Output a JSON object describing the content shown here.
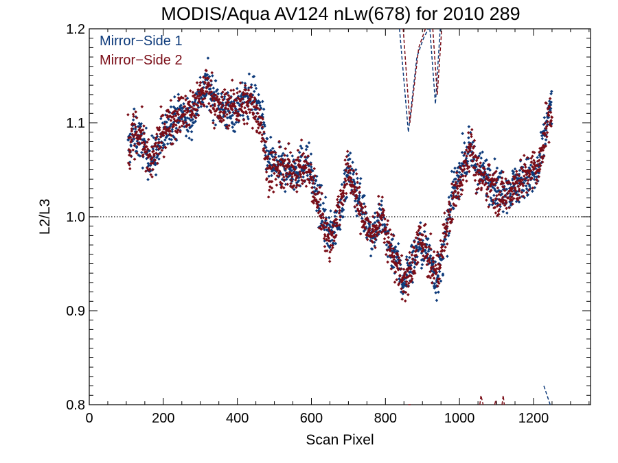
{
  "chart_data": {
    "type": "scatter",
    "title": "MODIS/Aqua AV124 nLw(678) for 2010 289",
    "xlabel": "Scan Pixel",
    "ylabel": "L2/L3",
    "xlim": [
      0,
      1354
    ],
    "ylim": [
      0.8,
      1.2
    ],
    "x_ticks": [
      0,
      200,
      400,
      600,
      800,
      1000,
      1200
    ],
    "x_tick_labels": [
      "0",
      "200",
      "400",
      "600",
      "800",
      "1000",
      "1200"
    ],
    "y_ticks": [
      0.8,
      0.9,
      1.0,
      1.1,
      1.2
    ],
    "y_tick_labels": [
      "0.8",
      "0.9",
      "1.0",
      "1.1",
      "1.2"
    ],
    "reference_line": 1.0,
    "legend_position": "top-left",
    "series": [
      {
        "name": "Mirror−Side 1",
        "color": "#0d3a7a",
        "trend": [
          [
            105,
            1.07
          ],
          [
            120,
            1.09
          ],
          [
            140,
            1.08
          ],
          [
            165,
            1.06
          ],
          [
            185,
            1.07
          ],
          [
            215,
            1.1
          ],
          [
            250,
            1.11
          ],
          [
            270,
            1.1
          ],
          [
            300,
            1.13
          ],
          [
            320,
            1.14
          ],
          [
            350,
            1.12
          ],
          [
            380,
            1.11
          ],
          [
            410,
            1.12
          ],
          [
            440,
            1.13
          ],
          [
            465,
            1.11
          ],
          [
            480,
            1.06
          ],
          [
            520,
            1.05
          ],
          [
            560,
            1.05
          ],
          [
            590,
            1.06
          ],
          [
            615,
            1.02
          ],
          [
            650,
            0.98
          ],
          [
            675,
            1.0
          ],
          [
            700,
            1.05
          ],
          [
            730,
            1.02
          ],
          [
            760,
            0.98
          ],
          [
            790,
            1.0
          ],
          [
            810,
            0.97
          ],
          [
            830,
            0.96
          ],
          [
            845,
            0.93
          ],
          [
            870,
            0.95
          ],
          [
            890,
            0.97
          ],
          [
            920,
            0.96
          ],
          [
            940,
            0.93
          ],
          [
            960,
            0.97
          ],
          [
            985,
            1.03
          ],
          [
            1010,
            1.06
          ],
          [
            1030,
            1.07
          ],
          [
            1050,
            1.05
          ],
          [
            1080,
            1.04
          ],
          [
            1110,
            1.03
          ],
          [
            1140,
            1.03
          ],
          [
            1170,
            1.04
          ],
          [
            1200,
            1.04
          ],
          [
            1215,
            1.05
          ],
          [
            1235,
            1.1
          ],
          [
            1250,
            1.12
          ]
        ],
        "dashed_segments": [
          [
            [
              838,
              1.2
            ],
            [
              862,
              1.09
            ],
            [
              885,
              1.17
            ],
            [
              903,
              1.19
            ],
            [
              916,
              1.2
            ]
          ],
          [
            [
              920,
              1.2
            ],
            [
              935,
              1.12
            ],
            [
              948,
              1.2
            ]
          ],
          [
            [
              1228,
              0.82
            ],
            [
              1245,
              0.8
            ]
          ]
        ]
      },
      {
        "name": "Mirror−Side 2",
        "color": "#7a0d17",
        "trend": [
          [
            105,
            1.06
          ],
          [
            120,
            1.09
          ],
          [
            140,
            1.09
          ],
          [
            165,
            1.05
          ],
          [
            185,
            1.08
          ],
          [
            215,
            1.1
          ],
          [
            250,
            1.11
          ],
          [
            270,
            1.11
          ],
          [
            300,
            1.13
          ],
          [
            320,
            1.14
          ],
          [
            350,
            1.11
          ],
          [
            380,
            1.12
          ],
          [
            410,
            1.12
          ],
          [
            440,
            1.12
          ],
          [
            465,
            1.1
          ],
          [
            480,
            1.05
          ],
          [
            520,
            1.05
          ],
          [
            560,
            1.05
          ],
          [
            590,
            1.05
          ],
          [
            615,
            1.02
          ],
          [
            650,
            0.97
          ],
          [
            675,
            1.01
          ],
          [
            700,
            1.05
          ],
          [
            730,
            1.01
          ],
          [
            760,
            0.98
          ],
          [
            790,
            1.0
          ],
          [
            810,
            0.97
          ],
          [
            830,
            0.95
          ],
          [
            845,
            0.93
          ],
          [
            870,
            0.94
          ],
          [
            890,
            0.98
          ],
          [
            920,
            0.95
          ],
          [
            940,
            0.94
          ],
          [
            960,
            0.98
          ],
          [
            985,
            1.02
          ],
          [
            1010,
            1.05
          ],
          [
            1030,
            1.08
          ],
          [
            1050,
            1.04
          ],
          [
            1080,
            1.04
          ],
          [
            1110,
            1.02
          ],
          [
            1140,
            1.03
          ],
          [
            1170,
            1.04
          ],
          [
            1200,
            1.05
          ],
          [
            1215,
            1.05
          ],
          [
            1235,
            1.1
          ],
          [
            1250,
            1.11
          ]
        ],
        "dashed_segments": [
          [
            [
              848,
              1.2
            ],
            [
              866,
              1.1
            ],
            [
              890,
              1.18
            ],
            [
              908,
              1.2
            ]
          ],
          [
            [
              928,
              1.2
            ],
            [
              940,
              1.13
            ],
            [
              952,
              1.2
            ]
          ],
          [
            [
              862,
              0.797
            ],
            [
              868,
              0.8
            ]
          ],
          [
            [
              1055,
              0.8
            ],
            [
              1058,
              0.81
            ],
            [
              1064,
              0.8
            ]
          ],
          [
            [
              1095,
              0.8
            ],
            [
              1098,
              0.805
            ],
            [
              1101,
              0.8
            ]
          ],
          [
            [
              1115,
              0.8
            ],
            [
              1118,
              0.81
            ],
            [
              1121,
              0.8
            ]
          ]
        ]
      }
    ]
  }
}
